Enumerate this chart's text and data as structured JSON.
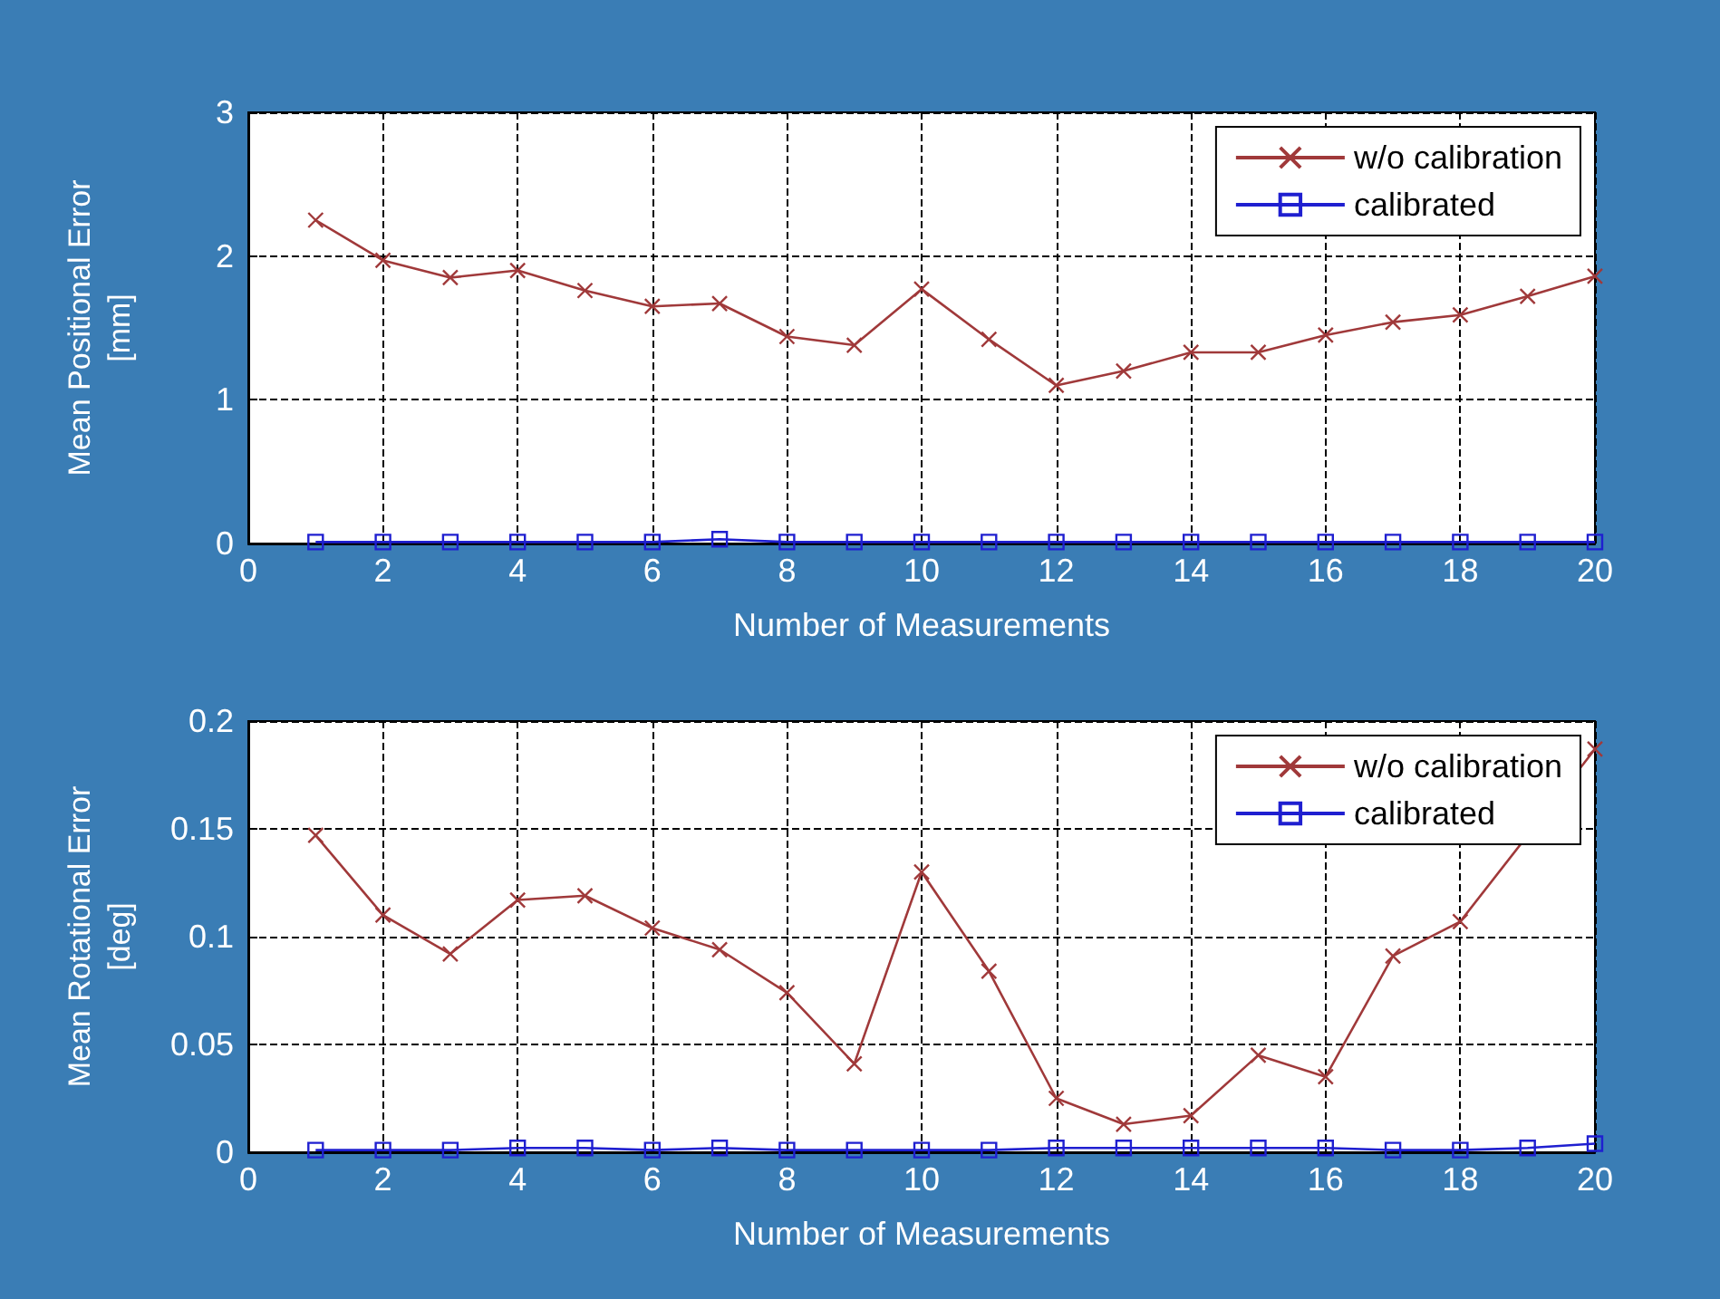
{
  "chart_data": [
    {
      "type": "line",
      "xlabel": "Number of Measurements",
      "ylabel": "Mean Positional Error\n[mm]",
      "x": [
        1,
        2,
        3,
        4,
        5,
        6,
        7,
        8,
        9,
        10,
        11,
        12,
        13,
        14,
        15,
        16,
        17,
        18,
        19,
        20
      ],
      "xlim": [
        0,
        20
      ],
      "xticks": [
        0,
        2,
        4,
        6,
        8,
        10,
        12,
        14,
        16,
        18,
        20
      ],
      "ylim": [
        0,
        3
      ],
      "yticks": [
        0,
        1,
        2,
        3
      ],
      "grid": true,
      "legend": "top right",
      "series": [
        {
          "name": "w/o calibration",
          "color": "#a0393a",
          "marker": "cross",
          "values": [
            2.25,
            1.97,
            1.85,
            1.9,
            1.76,
            1.65,
            1.67,
            1.44,
            1.38,
            1.77,
            1.42,
            1.1,
            1.2,
            1.33,
            1.33,
            1.45,
            1.54,
            1.59,
            1.72,
            1.86
          ]
        },
        {
          "name": "calibrated",
          "color": "#1f1fd0",
          "marker": "square",
          "values": [
            0.01,
            0.01,
            0.01,
            0.01,
            0.01,
            0.01,
            0.03,
            0.01,
            0.01,
            0.01,
            0.01,
            0.01,
            0.01,
            0.01,
            0.01,
            0.01,
            0.01,
            0.01,
            0.01,
            0.01
          ]
        }
      ]
    },
    {
      "type": "line",
      "xlabel": "Number of Measurements",
      "ylabel": "Mean Rotational Error\n[deg]",
      "x": [
        1,
        2,
        3,
        4,
        5,
        6,
        7,
        8,
        9,
        10,
        11,
        12,
        13,
        14,
        15,
        16,
        17,
        18,
        19,
        20
      ],
      "xlim": [
        0,
        20
      ],
      "xticks": [
        0,
        2,
        4,
        6,
        8,
        10,
        12,
        14,
        16,
        18,
        20
      ],
      "ylim": [
        0,
        0.2
      ],
      "yticks": [
        0,
        0.05,
        0.1,
        0.15,
        0.2
      ],
      "grid": true,
      "legend": "top right",
      "series": [
        {
          "name": "w/o calibration",
          "color": "#a0393a",
          "marker": "cross",
          "values": [
            0.147,
            0.11,
            0.092,
            0.117,
            0.119,
            0.104,
            0.094,
            0.074,
            0.041,
            0.13,
            0.084,
            0.025,
            0.013,
            0.017,
            0.045,
            0.035,
            0.091,
            0.107,
            null,
            0.187
          ]
        },
        {
          "name": "calibrated",
          "color": "#1f1fd0",
          "marker": "square",
          "values": [
            0.001,
            0.001,
            0.001,
            0.002,
            0.002,
            0.001,
            0.002,
            0.001,
            0.001,
            0.001,
            0.001,
            0.002,
            0.002,
            0.002,
            0.002,
            0.002,
            0.001,
            0.001,
            0.002,
            0.004
          ]
        }
      ]
    }
  ]
}
